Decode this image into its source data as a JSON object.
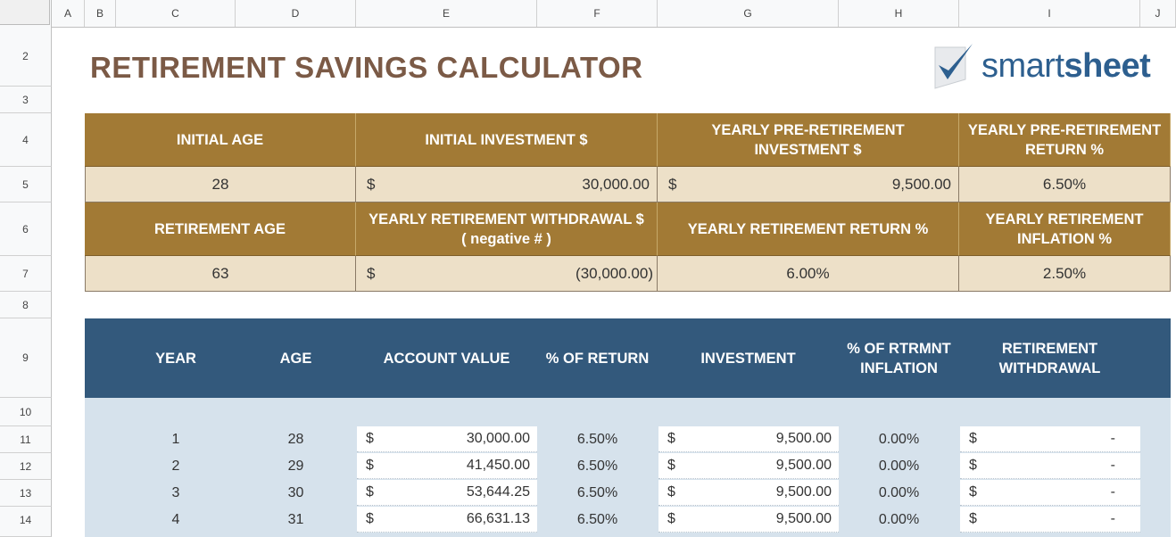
{
  "columns": [
    "A",
    "B",
    "C",
    "D",
    "E",
    "F",
    "G",
    "H",
    "I",
    "J"
  ],
  "rows": [
    "2",
    "3",
    "4",
    "5",
    "6",
    "7",
    "8",
    "9",
    "10",
    "11",
    "12",
    "13",
    "14"
  ],
  "title": "RETIREMENT SAVINGS CALCULATOR",
  "logo": {
    "check_icon": "checkmark-icon",
    "text_a": "smart",
    "text_b": "sheet"
  },
  "inputs": {
    "initial_age": {
      "label": "INITIAL AGE",
      "value": "28"
    },
    "initial_investment": {
      "label": "INITIAL INVESTMENT  $",
      "currency": "$",
      "value": "30,000.00"
    },
    "yearly_preret_investment": {
      "label": "YEARLY PRE-RETIREMENT INVESTMENT $",
      "currency": "$",
      "value": "9,500.00"
    },
    "yearly_preret_return": {
      "label": "YEARLY PRE-RETIREMENT RETURN  %",
      "value": "6.50%"
    },
    "retirement_age": {
      "label": "RETIREMENT AGE",
      "value": "63"
    },
    "yearly_ret_withdrawal": {
      "label": "YEARLY RETIREMENT WITHDRAWAL $ ( negative # )",
      "currency": "$",
      "value": "(30,000.00)"
    },
    "yearly_ret_return": {
      "label": "YEARLY RETIREMENT RETURN  %",
      "value": "6.00%"
    },
    "yearly_ret_inflation": {
      "label": "YEARLY RETIREMENT INFLATION  %",
      "value": "2.50%"
    }
  },
  "table": {
    "headers": [
      "YEAR",
      "AGE",
      "ACCOUNT VALUE",
      "% OF RETURN",
      "INVESTMENT",
      "% OF RTRMNT INFLATION",
      "RETIREMENT WITHDRAWAL"
    ],
    "rows": [
      {
        "year": "1",
        "age": "28",
        "cur1": "$",
        "account": "30,000.00",
        "ret": "6.50%",
        "cur2": "$",
        "investment": "9,500.00",
        "infl": "0.00%",
        "cur3": "$",
        "withdrawal": "-"
      },
      {
        "year": "2",
        "age": "29",
        "cur1": "$",
        "account": "41,450.00",
        "ret": "6.50%",
        "cur2": "$",
        "investment": "9,500.00",
        "infl": "0.00%",
        "cur3": "$",
        "withdrawal": "-"
      },
      {
        "year": "3",
        "age": "30",
        "cur1": "$",
        "account": "53,644.25",
        "ret": "6.50%",
        "cur2": "$",
        "investment": "9,500.00",
        "infl": "0.00%",
        "cur3": "$",
        "withdrawal": "-"
      },
      {
        "year": "4",
        "age": "31",
        "cur1": "$",
        "account": "66,631.13",
        "ret": "6.50%",
        "cur2": "$",
        "investment": "9,500.00",
        "infl": "0.00%",
        "cur3": "$",
        "withdrawal": "-"
      }
    ]
  }
}
